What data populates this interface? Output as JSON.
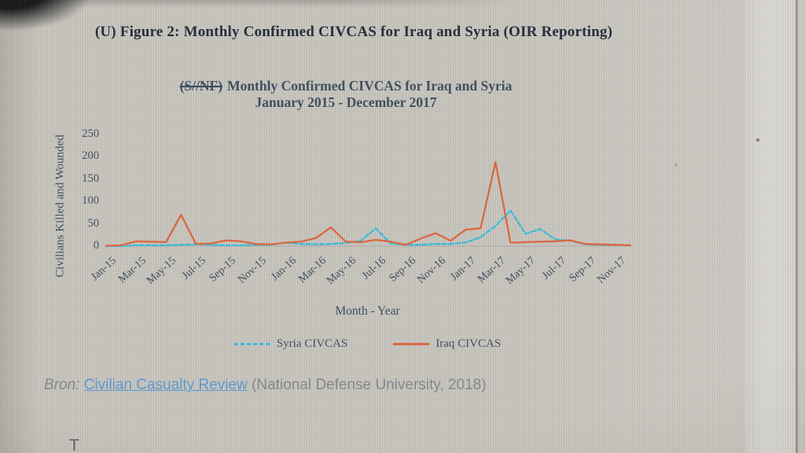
{
  "page": {
    "doc_title": "(U) Figure 2: Monthly Confirmed CIVCAS for Iraq and Syria (OIR Reporting)",
    "source_prefix": "Bron:",
    "source_link": "Civilian Casualty Review",
    "source_suffix": "(National Defense University, 2018)",
    "stray_text": "T"
  },
  "chart_data": {
    "type": "line",
    "title_classification": "(S//NF)",
    "title": "Monthly Confirmed CIVCAS for Iraq and Syria",
    "subtitle": "January 2015 - December 2017",
    "xlabel": "Month - Year",
    "ylabel": "Civilians Killed and Wounded",
    "ylim": [
      0,
      250
    ],
    "y_ticks": [
      0,
      50,
      100,
      150,
      200,
      250
    ],
    "x_tick_labels": [
      "Jan-15",
      "Mar-15",
      "May-15",
      "Jul-15",
      "Sep-15",
      "Nov-15",
      "Jan-16",
      "Mar-16",
      "May-16",
      "Jul-16",
      "Sep-16",
      "Nov-16",
      "Jan-17",
      "Mar-17",
      "May-17",
      "Jul-17",
      "Sep-17",
      "Nov-17"
    ],
    "x": [
      "Jan-15",
      "Feb-15",
      "Mar-15",
      "Apr-15",
      "May-15",
      "Jun-15",
      "Jul-15",
      "Aug-15",
      "Sep-15",
      "Oct-15",
      "Nov-15",
      "Dec-15",
      "Jan-16",
      "Feb-16",
      "Mar-16",
      "Apr-16",
      "May-16",
      "Jun-16",
      "Jul-16",
      "Aug-16",
      "Sep-16",
      "Oct-16",
      "Nov-16",
      "Dec-16",
      "Jan-17",
      "Feb-17",
      "Mar-17",
      "Apr-17",
      "May-17",
      "Jun-17",
      "Jul-17",
      "Aug-17",
      "Sep-17",
      "Oct-17",
      "Nov-17",
      "Dec-17"
    ],
    "series": [
      {
        "name": "Syria CIVCAS",
        "color": "#38bedc",
        "dashed": true,
        "values": [
          0,
          0,
          2,
          2,
          2,
          3,
          4,
          3,
          2,
          2,
          3,
          3,
          8,
          5,
          4,
          5,
          7,
          12,
          40,
          6,
          3,
          3,
          5,
          5,
          8,
          20,
          45,
          80,
          28,
          38,
          15,
          12,
          4,
          3,
          3,
          2
        ]
      },
      {
        "name": "Iraq CIVCAS",
        "color": "#e0663f",
        "dashed": false,
        "values": [
          1,
          2,
          11,
          10,
          9,
          70,
          5,
          6,
          13,
          11,
          5,
          4,
          8,
          10,
          18,
          42,
          10,
          9,
          14,
          10,
          3,
          17,
          29,
          12,
          37,
          40,
          188,
          8,
          9,
          10,
          11,
          13,
          5,
          4,
          3,
          2
        ]
      }
    ],
    "legend_position": "bottom",
    "grid": false
  }
}
